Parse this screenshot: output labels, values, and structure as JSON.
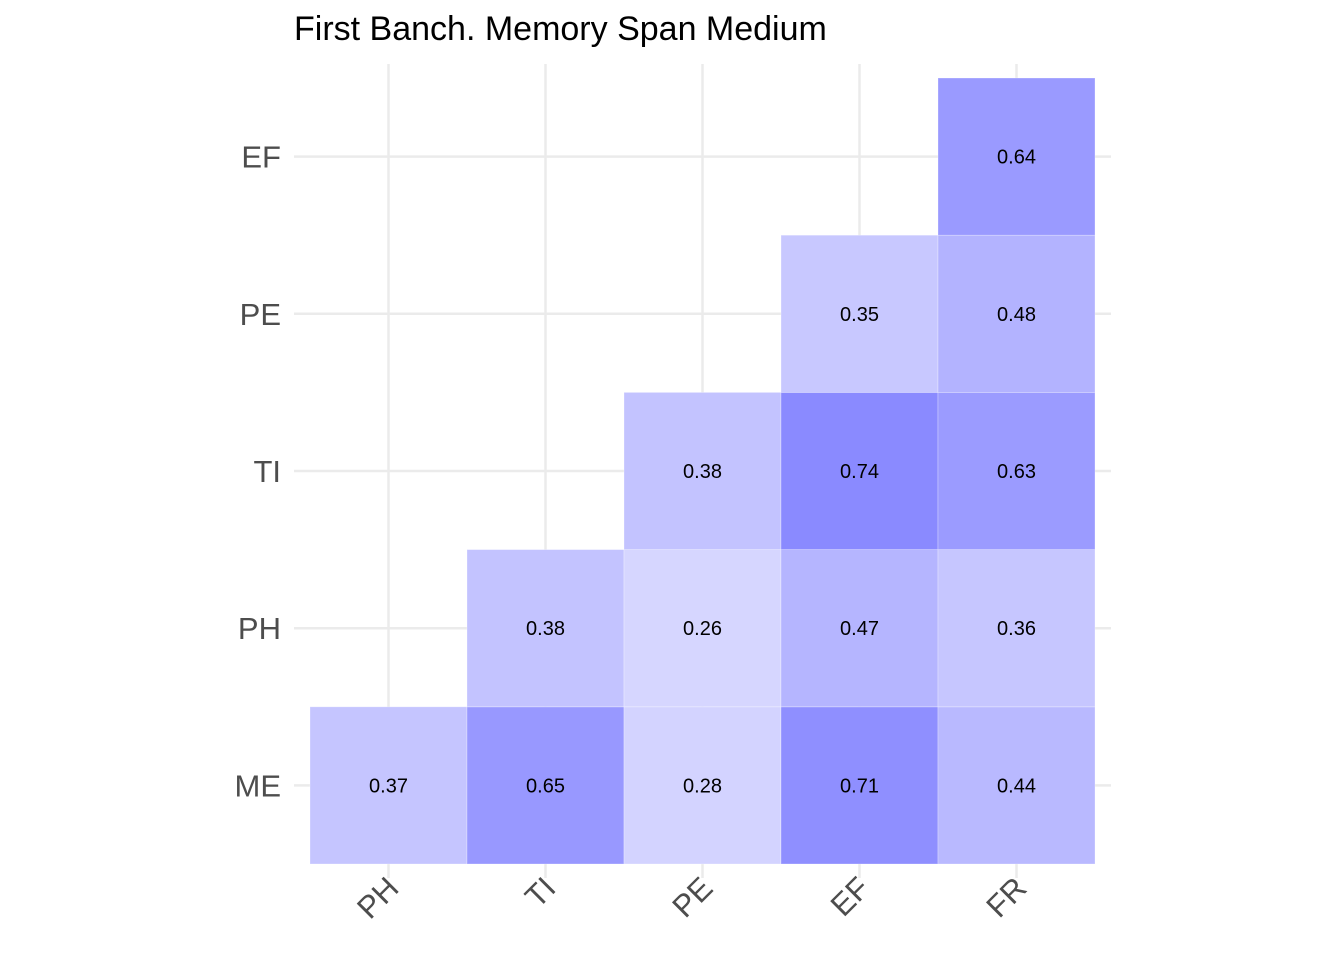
{
  "chart_data": {
    "type": "heatmap",
    "title": "First Banch. Memory Span Medium",
    "xlabel": "",
    "ylabel": "",
    "x_categories": [
      "PH",
      "TI",
      "PE",
      "EF",
      "FR"
    ],
    "y_categories": [
      "ME",
      "PH",
      "TI",
      "PE",
      "EF"
    ],
    "grid": true,
    "legend": "none",
    "color_low": "#ffffff",
    "color_high": "#0000ff",
    "cells": [
      {
        "x": "PH",
        "y": "ME",
        "value": 0.37,
        "label": "0.37"
      },
      {
        "x": "TI",
        "y": "ME",
        "value": 0.65,
        "label": "0.65"
      },
      {
        "x": "PE",
        "y": "ME",
        "value": 0.28,
        "label": "0.28"
      },
      {
        "x": "EF",
        "y": "ME",
        "value": 0.71,
        "label": "0.71"
      },
      {
        "x": "FR",
        "y": "ME",
        "value": 0.44,
        "label": "0.44"
      },
      {
        "x": "TI",
        "y": "PH",
        "value": 0.38,
        "label": "0.38"
      },
      {
        "x": "PE",
        "y": "PH",
        "value": 0.26,
        "label": "0.26"
      },
      {
        "x": "EF",
        "y": "PH",
        "value": 0.47,
        "label": "0.47"
      },
      {
        "x": "FR",
        "y": "PH",
        "value": 0.36,
        "label": "0.36"
      },
      {
        "x": "PE",
        "y": "TI",
        "value": 0.38,
        "label": "0.38"
      },
      {
        "x": "EF",
        "y": "TI",
        "value": 0.74,
        "label": "0.74"
      },
      {
        "x": "FR",
        "y": "TI",
        "value": 0.63,
        "label": "0.63"
      },
      {
        "x": "EF",
        "y": "PE",
        "value": 0.35,
        "label": "0.35"
      },
      {
        "x": "FR",
        "y": "PE",
        "value": 0.48,
        "label": "0.48"
      },
      {
        "x": "FR",
        "y": "EF",
        "value": 0.64,
        "label": "0.64"
      }
    ]
  }
}
